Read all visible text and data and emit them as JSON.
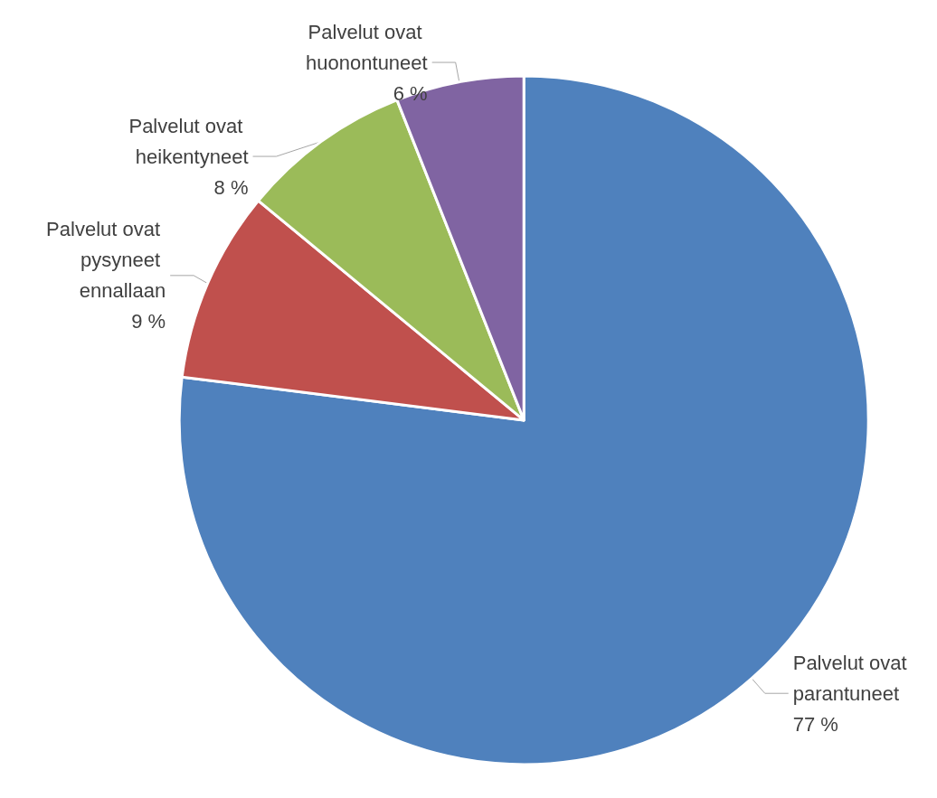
{
  "chart_data": {
    "type": "pie",
    "categories": [
      "Palvelut ovat parantuneet",
      "Palvelut ovat pysyneet ennallaan",
      "Palvelut ovat heikentyneet",
      "Palvelut ovat huonontuneet"
    ],
    "values": [
      77,
      9,
      8,
      6
    ],
    "colors": [
      "#4f81bd",
      "#c0504d",
      "#9bbb59",
      "#8064a2"
    ],
    "value_labels": [
      "77 %",
      "9 %",
      "8 %",
      "6 %"
    ],
    "legend": false
  }
}
